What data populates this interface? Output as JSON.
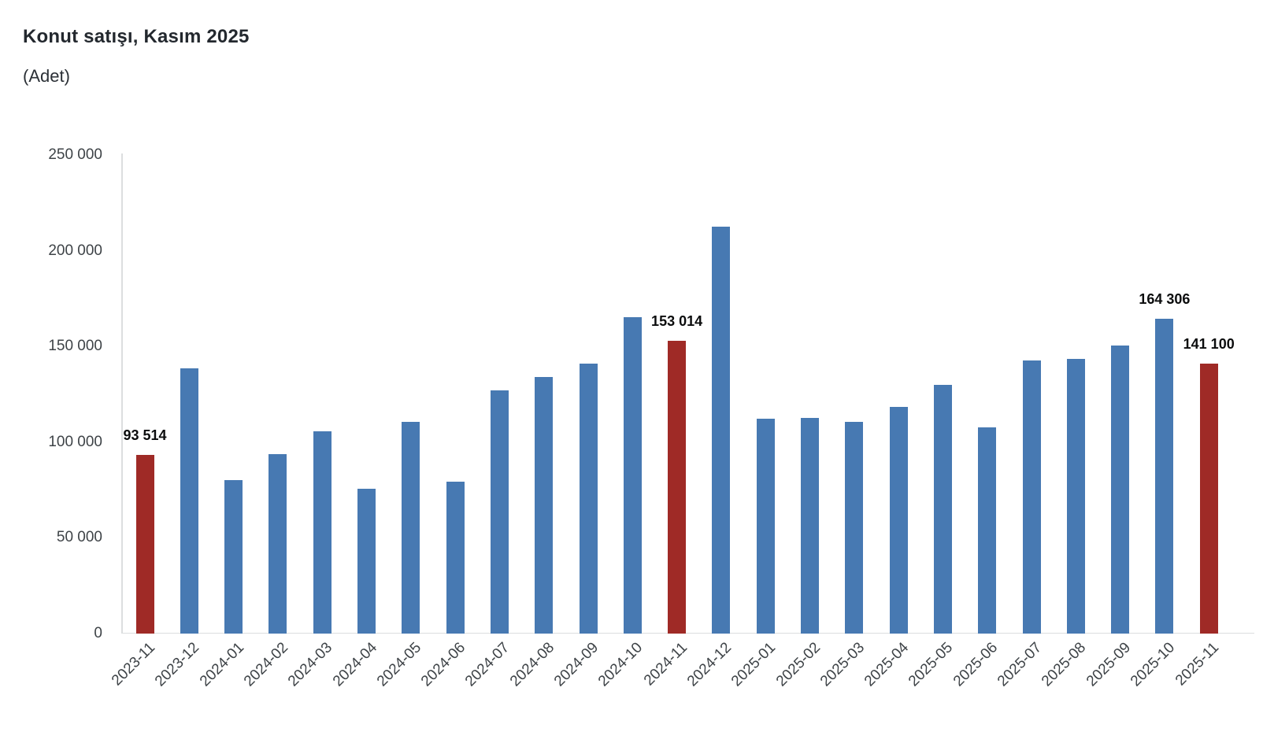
{
  "header": {
    "title": "Konut satışı, Kasım 2025",
    "subtitle": "(Adet)"
  },
  "chart_data": {
    "type": "bar",
    "title": "Konut satışı, Kasım 2025",
    "xlabel": "",
    "ylabel": "(Adet)",
    "grid": false,
    "legend": null,
    "ylim": [
      0,
      250000
    ],
    "yticks": [
      0,
      50000,
      100000,
      150000,
      200000,
      250000
    ],
    "ytick_labels": [
      "0",
      "50 000",
      "100 000",
      "150 000",
      "200 000",
      "250 000"
    ],
    "categories": [
      "2023-11",
      "2023-12",
      "2024-01",
      "2024-02",
      "2024-03",
      "2024-04",
      "2024-05",
      "2024-06",
      "2024-07",
      "2024-08",
      "2024-09",
      "2024-10",
      "2024-11",
      "2024-12",
      "2025-01",
      "2025-02",
      "2025-03",
      "2025-04",
      "2025-05",
      "2025-06",
      "2025-07",
      "2025-08",
      "2025-09",
      "2025-10",
      "2025-11"
    ],
    "values": [
      93514,
      138577,
      80308,
      93902,
      105476,
      75569,
      110588,
      79313,
      127088,
      134155,
      140919,
      165138,
      153014,
      212637,
      112173,
      112818,
      110795,
      118359,
      130025,
      107723,
      142858,
      143319,
      150657,
      164306,
      141100
    ],
    "highlight_indices": [
      0,
      12,
      24
    ],
    "data_labels": [
      {
        "index": 0,
        "text": "93 514"
      },
      {
        "index": 12,
        "text": "153 014"
      },
      {
        "index": 23,
        "text": "164 306"
      },
      {
        "index": 24,
        "text": "141 100"
      }
    ],
    "colors": {
      "default_bar": "#4779b2",
      "highlight_bar": "#9f2a26",
      "axis_line": "#dcdedf",
      "tick_text": "#3e4347",
      "data_label_text": "#0b0c0d",
      "title_text": "#23282e"
    }
  }
}
